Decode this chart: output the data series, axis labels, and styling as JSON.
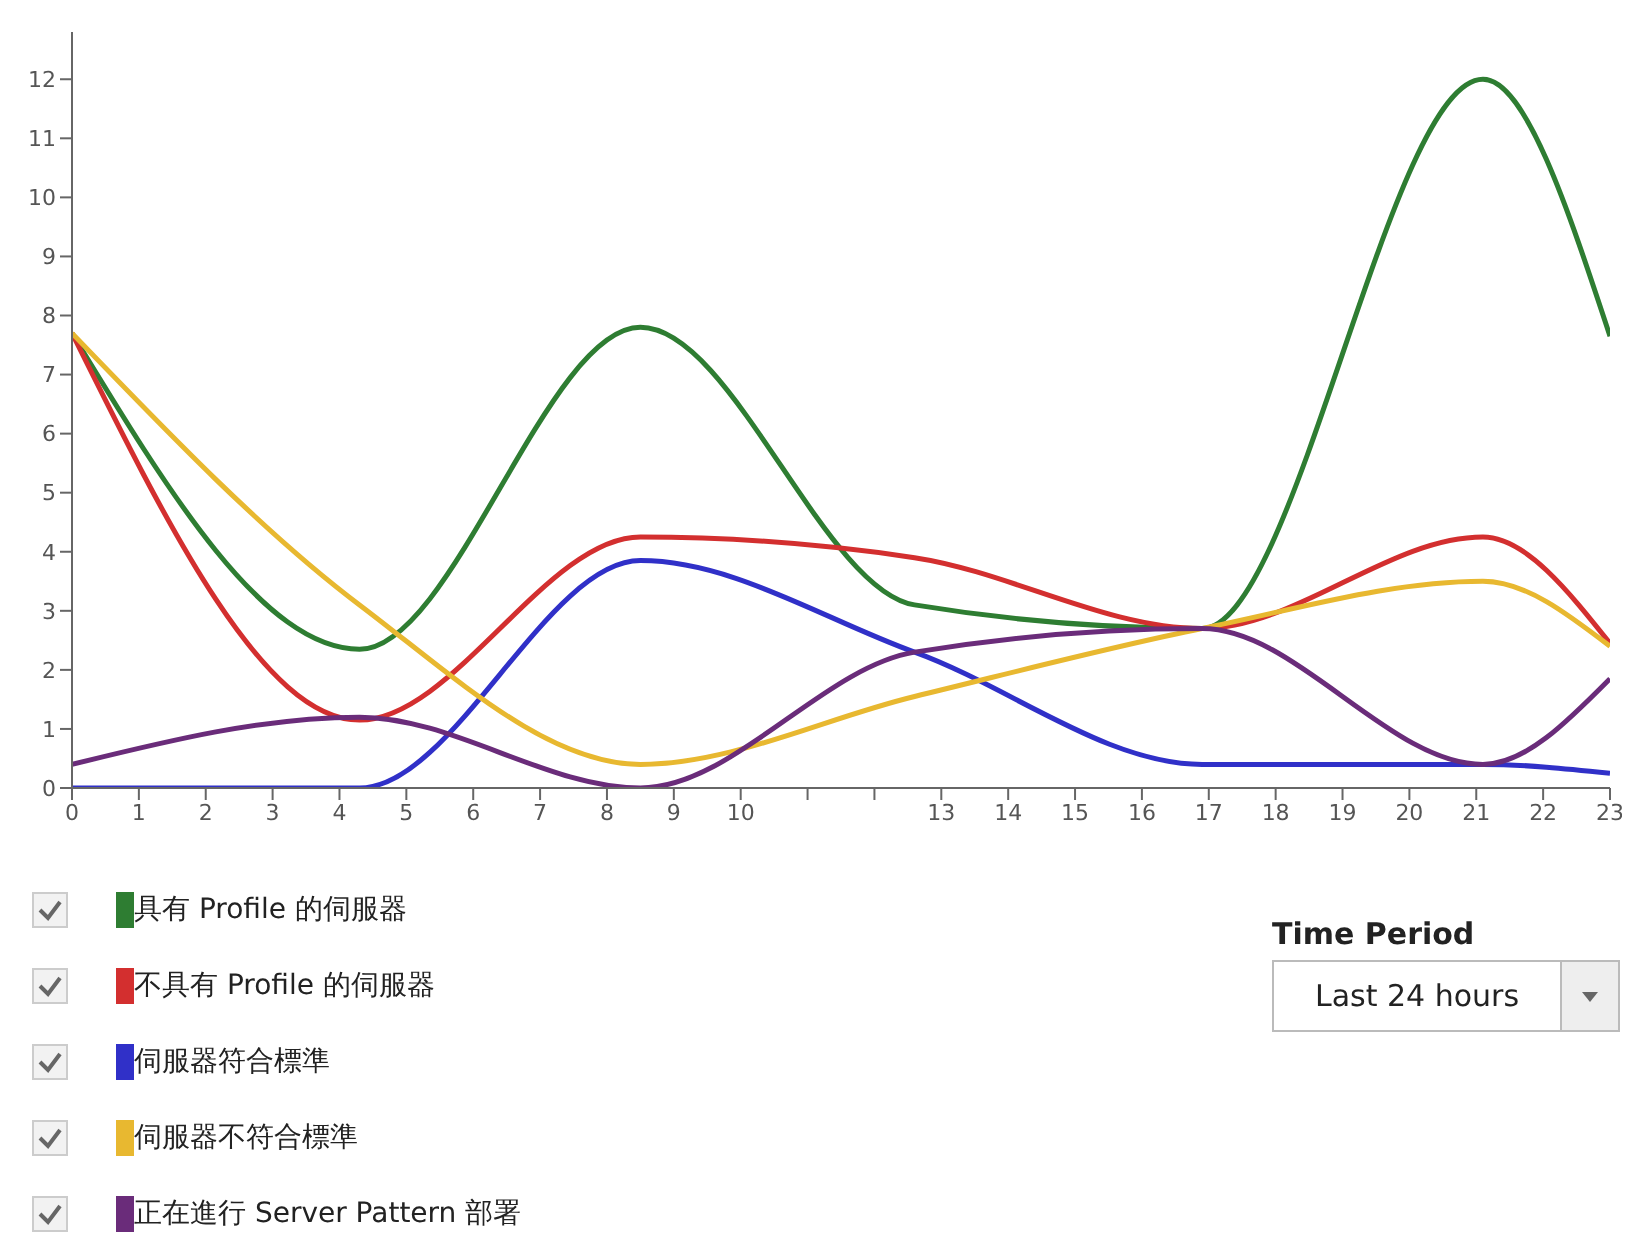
{
  "chart_data": {
    "type": "line",
    "x": [
      0,
      4.3,
      8.5,
      12.6,
      16.9,
      21.1,
      23
    ],
    "series": [
      {
        "name": "具有 Profile 的伺服器",
        "color": "#2e7d32",
        "values": [
          7.7,
          2.35,
          7.8,
          3.1,
          2.7,
          12,
          7.65
        ]
      },
      {
        "name": "不具有 Profile 的伺服器",
        "color": "#d32f2f",
        "values": [
          7.7,
          1.15,
          4.25,
          3.9,
          2.7,
          4.25,
          2.45
        ]
      },
      {
        "name": "伺服器符合標準",
        "color": "#3030c8",
        "values": [
          0,
          0,
          3.85,
          2.3,
          0.4,
          0.4,
          0.25
        ]
      },
      {
        "name": "伺服器不符合標準",
        "color": "#e8b830",
        "values": [
          7.7,
          3.1,
          0.4,
          1.55,
          2.7,
          3.5,
          2.4
        ]
      },
      {
        "name": "正在進行 Server Pattern 部署",
        "color": "#6a2c7a",
        "values": [
          0.4,
          1.2,
          0,
          2.3,
          2.7,
          0.4,
          1.85
        ]
      }
    ],
    "xlim": [
      0,
      23
    ],
    "xticks": [
      0,
      1,
      2,
      3,
      4,
      5,
      6,
      7,
      8,
      9,
      10,
      {
        "value": 11,
        "label": null
      },
      {
        "value": 12,
        "label": null
      },
      13,
      14,
      15,
      16,
      17,
      18,
      19,
      20,
      21,
      22,
      23
    ],
    "ylim": [
      0,
      12.8
    ],
    "yticks": [
      0,
      1,
      2,
      3,
      4,
      5,
      6,
      7,
      8,
      9,
      10,
      11,
      12
    ],
    "grid": false,
    "marker": "none",
    "line_style": "solid",
    "legend": "bottom",
    "annotations": [
      "Time Period",
      "Last 24 hours"
    ]
  }
}
